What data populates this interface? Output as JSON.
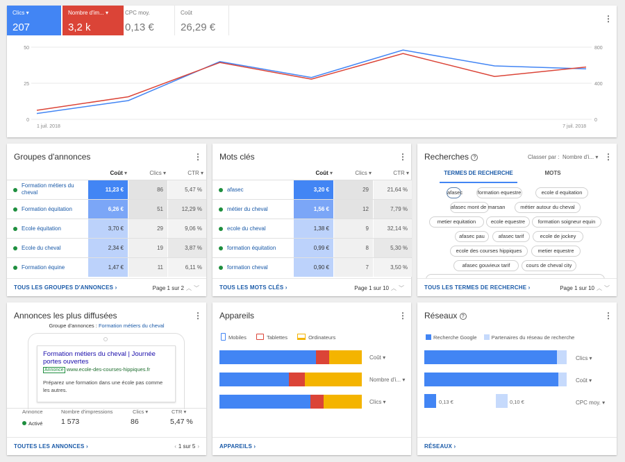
{
  "metrics": {
    "clicks_label": "Clics",
    "clicks_value": "207",
    "impr_label": "Nombre d'im...",
    "impr_value": "3,2 k",
    "cpc_label": "CPC moy.",
    "cpc_value": "0,13 €",
    "cost_label": "Coût",
    "cost_value": "26,29 €"
  },
  "colors": {
    "blue": "#4285f4",
    "red": "#db4437",
    "yellow": "#f4b400",
    "dark_blue": "#1a5aa8",
    "green": "#1e8e3e"
  },
  "chart_data": {
    "type": "line",
    "x_start_label": "1 juil. 2018",
    "x_end_label": "7 juil. 2018",
    "y_left_ticks": [
      "50",
      "25",
      "0"
    ],
    "y_right_ticks": [
      "800",
      "400",
      "0"
    ],
    "ylim_left": [
      0,
      50
    ],
    "ylim_right": [
      0,
      800
    ],
    "series": [
      {
        "name": "Clics",
        "color": "#4285f4",
        "axis": "left",
        "values": [
          4,
          13,
          40,
          29,
          48,
          37,
          35
        ]
      },
      {
        "name": "Nombre d'impressions",
        "color": "#db4437",
        "axis": "right",
        "values": [
          100,
          250,
          630,
          445,
          730,
          475,
          580
        ]
      }
    ]
  },
  "groups": {
    "title": "Groupes d'annonces",
    "col_cost": "Coût",
    "col_clicks": "Clics",
    "col_ctr": "CTR",
    "rows": [
      {
        "name": "Formation métiers du cheval",
        "cost": "11,23 €",
        "clicks": "86",
        "ctr": "5,47 %"
      },
      {
        "name": "Formation équitation",
        "cost": "6,26 €",
        "clicks": "51",
        "ctr": "12,29 %"
      },
      {
        "name": "Ecole équitation",
        "cost": "3,70 €",
        "clicks": "29",
        "ctr": "9,06 %"
      },
      {
        "name": "Ecole du cheval",
        "cost": "2,34 €",
        "clicks": "19",
        "ctr": "3,87 %"
      },
      {
        "name": "Formation équine",
        "cost": "1,47 €",
        "clicks": "11",
        "ctr": "6,11 %"
      }
    ],
    "footer": "TOUS LES GROUPES D'ANNONCES ›",
    "pager": "Page 1 sur 2"
  },
  "keywords": {
    "title": "Mots clés",
    "col_cost": "Coût",
    "col_clicks": "Clics",
    "col_ctr": "CTR",
    "rows": [
      {
        "name": "afasec",
        "cost": "3,20 €",
        "clicks": "29",
        "ctr": "21,64 %"
      },
      {
        "name": "métier du cheval",
        "cost": "1,56 €",
        "clicks": "12",
        "ctr": "7,79 %"
      },
      {
        "name": "ecole du cheval",
        "cost": "1,38 €",
        "clicks": "9",
        "ctr": "32,14 %"
      },
      {
        "name": "formation équitation",
        "cost": "0,99 €",
        "clicks": "8",
        "ctr": "5,30 %"
      },
      {
        "name": "formation cheval",
        "cost": "0,90 €",
        "clicks": "7",
        "ctr": "3,50 %"
      }
    ],
    "footer": "TOUS LES MOTS CLÉS ›",
    "pager": "Page 1 sur 10"
  },
  "searches": {
    "title": "Recherches",
    "sort_label": "Classer par :",
    "sort_value": "Nombre d'i...",
    "tab_terms": "TERMES DE RECHERCHE",
    "tab_words": "MOTS",
    "chips": [
      "afasec",
      "formation equestre",
      "ecole d equitation",
      "afasec mont de marsan",
      "métier autour du cheval",
      "metier equitation",
      "ecole equestre",
      "formation soigneur equin",
      "afasec pau",
      "afasec tarif",
      "ecole de jockey",
      "ecole des courses hippiques",
      "metier equestre",
      "afasec gouvieux tarif",
      "cours de cheval city"
    ],
    "footer": "TOUS LES TERMES DE RECHERCHE ›",
    "pager": "Page 1 sur 10"
  },
  "ads": {
    "title": "Annonces les plus diffusées",
    "group_prefix": "Groupe d'annonces :",
    "group_name": "Formation métiers du cheval",
    "ad_headline": "Formation métiers du cheval | Journée portes ouvertes",
    "ad_badge": "Annonce",
    "ad_url": "www.ecole-des-courses-hippiques.fr",
    "ad_desc": "Préparez une formation dans une école pas comme les autres.",
    "col_ad": "Annonce",
    "col_impr": "Nombre d'impressions",
    "col_clicks": "Clics",
    "col_ctr": "CTR",
    "status": "Activé",
    "impr": "1 573",
    "clicks": "86",
    "ctr": "5,47 %",
    "footer": "TOUTES LES ANNONCES ›",
    "pager": "1 sur 5"
  },
  "devices": {
    "title": "Appareils",
    "legend": [
      "Mobiles",
      "Tablettes",
      "Ordinateurs"
    ],
    "bars": [
      {
        "label": "Coût",
        "shares": [
          0.68,
          0.09,
          0.23
        ]
      },
      {
        "label": "Nombre d'i...",
        "shares": [
          0.49,
          0.11,
          0.4
        ]
      },
      {
        "label": "Clics",
        "shares": [
          0.64,
          0.09,
          0.27
        ]
      }
    ],
    "footer": "APPAREILS ›"
  },
  "networks": {
    "title": "Réseaux",
    "legend": [
      "Recherche Google",
      "Partenaires du réseau de recherche"
    ],
    "bars": [
      {
        "label": "Clics",
        "shares": [
          0.93,
          0.07
        ]
      },
      {
        "label": "Coût",
        "shares": [
          0.94,
          0.06
        ]
      }
    ],
    "cpc": {
      "label": "CPC moy.",
      "google": "0,13 €",
      "partners": "0,10 €"
    },
    "footer": "RÉSEAUX ›"
  }
}
